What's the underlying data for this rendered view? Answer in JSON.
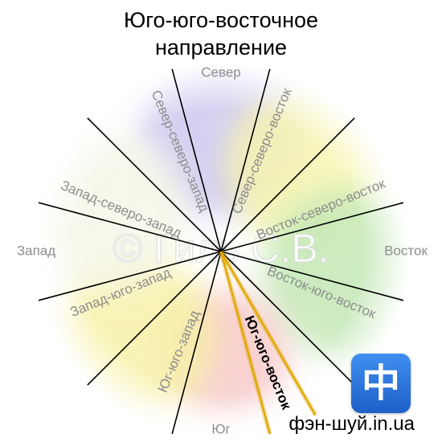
{
  "header": {
    "title_line1": "Юго-юго-восточное",
    "title_line2": "направление"
  },
  "directions": [
    {
      "label": "Север",
      "angle": 0,
      "color": "#8d8d8d",
      "bold": false
    },
    {
      "label": "Север-северо-восток",
      "angle": 22.5,
      "color": "#8d8d8d",
      "bold": false
    },
    {
      "label": "Восток-северо-восток",
      "angle": 67.5,
      "color": "#8d8d8d",
      "bold": false
    },
    {
      "label": "Восток",
      "angle": 90,
      "color": "#8d8d8d",
      "bold": false
    },
    {
      "label": "Восток-юго-восток",
      "angle": 112.5,
      "color": "#8d8d8d",
      "bold": false
    },
    {
      "label": "Юг-юго-восток",
      "angle": 157.5,
      "color": "#000000",
      "bold": true
    },
    {
      "label": "Юг",
      "angle": 180,
      "color": "#8d8d8d",
      "bold": false
    },
    {
      "label": "Юг-юго-запад",
      "angle": 202.5,
      "color": "#8d8d8d",
      "bold": false
    },
    {
      "label": "Запад-юго-запад",
      "angle": 247.5,
      "color": "#8d8d8d",
      "bold": false
    },
    {
      "label": "Запад",
      "angle": 270,
      "color": "#8d8d8d",
      "bold": false
    },
    {
      "label": "Запад-северо-запад",
      "angle": 292.5,
      "color": "#8d8d8d",
      "bold": false
    },
    {
      "label": "Север-северо-запад",
      "angle": 337.5,
      "color": "#8d8d8d",
      "bold": false
    }
  ],
  "highlight": {
    "sector": "Юг-юго-восток",
    "color": "#e0a800"
  },
  "sector_colors": {
    "north": "#c9c3ee",
    "east": "#bfe6b0",
    "south": "#f7c4c4",
    "west": "#f5f5e6",
    "northeast": "#f6f4a8",
    "southwest": "#f6f0a0"
  },
  "watermark": "© Гиль С.В.",
  "logo": {
    "glyph": "中",
    "name": "logo-icon"
  },
  "footer": {
    "site": "фэн-шуй.in.ua"
  }
}
